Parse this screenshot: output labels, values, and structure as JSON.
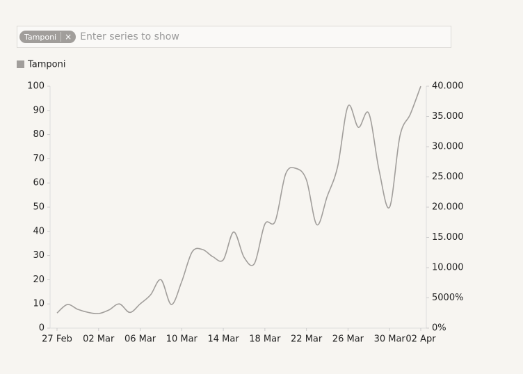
{
  "series_picker": {
    "chip": "Tamponi",
    "placeholder": "Enter series to show"
  },
  "chart_data": {
    "type": "line",
    "categories": [
      "27 Feb",
      null,
      null,
      null,
      "02 Mar",
      null,
      null,
      null,
      "06 Mar",
      null,
      null,
      null,
      "10 Mar",
      null,
      null,
      null,
      "14 Mar",
      null,
      null,
      null,
      "18 Mar",
      null,
      null,
      null,
      "22 Mar",
      null,
      null,
      null,
      "26 Mar",
      null,
      null,
      null,
      "30 Mar",
      null,
      null,
      "02 Apr"
    ],
    "series": [
      {
        "name": "Tamponi",
        "color": "#a19e9b",
        "axis": "y2",
        "values": [
          2500,
          3900,
          3100,
          2600,
          2400,
          3000,
          4000,
          2600,
          4000,
          5500,
          8000,
          3900,
          7700,
          12600,
          13000,
          11800,
          11300,
          15900,
          11700,
          10700,
          17200,
          17700,
          25500,
          26400,
          24500,
          17100,
          21800,
          26700,
          36700,
          33200,
          35500,
          26000,
          20000,
          31800,
          35400,
          40000
        ]
      }
    ],
    "ylim": [
      0,
      100
    ],
    "yticks": [
      0,
      10,
      20,
      30,
      40,
      50,
      60,
      70,
      80,
      90,
      100
    ],
    "y2lim": [
      0,
      40000
    ],
    "y2ticks": [
      {
        "value": 0,
        "label": "0%"
      },
      {
        "value": 5000,
        "label": "5000%"
      },
      {
        "value": 10000,
        "label": "10.000"
      },
      {
        "value": 15000,
        "label": "15.000"
      },
      {
        "value": 20000,
        "label": "20.000"
      },
      {
        "value": 25000,
        "label": "25.000"
      },
      {
        "value": 30000,
        "label": "30.000"
      },
      {
        "value": 35000,
        "label": "35.000"
      },
      {
        "value": 40000,
        "label": "40.000"
      }
    ],
    "grid": false,
    "legend": "top-left"
  }
}
